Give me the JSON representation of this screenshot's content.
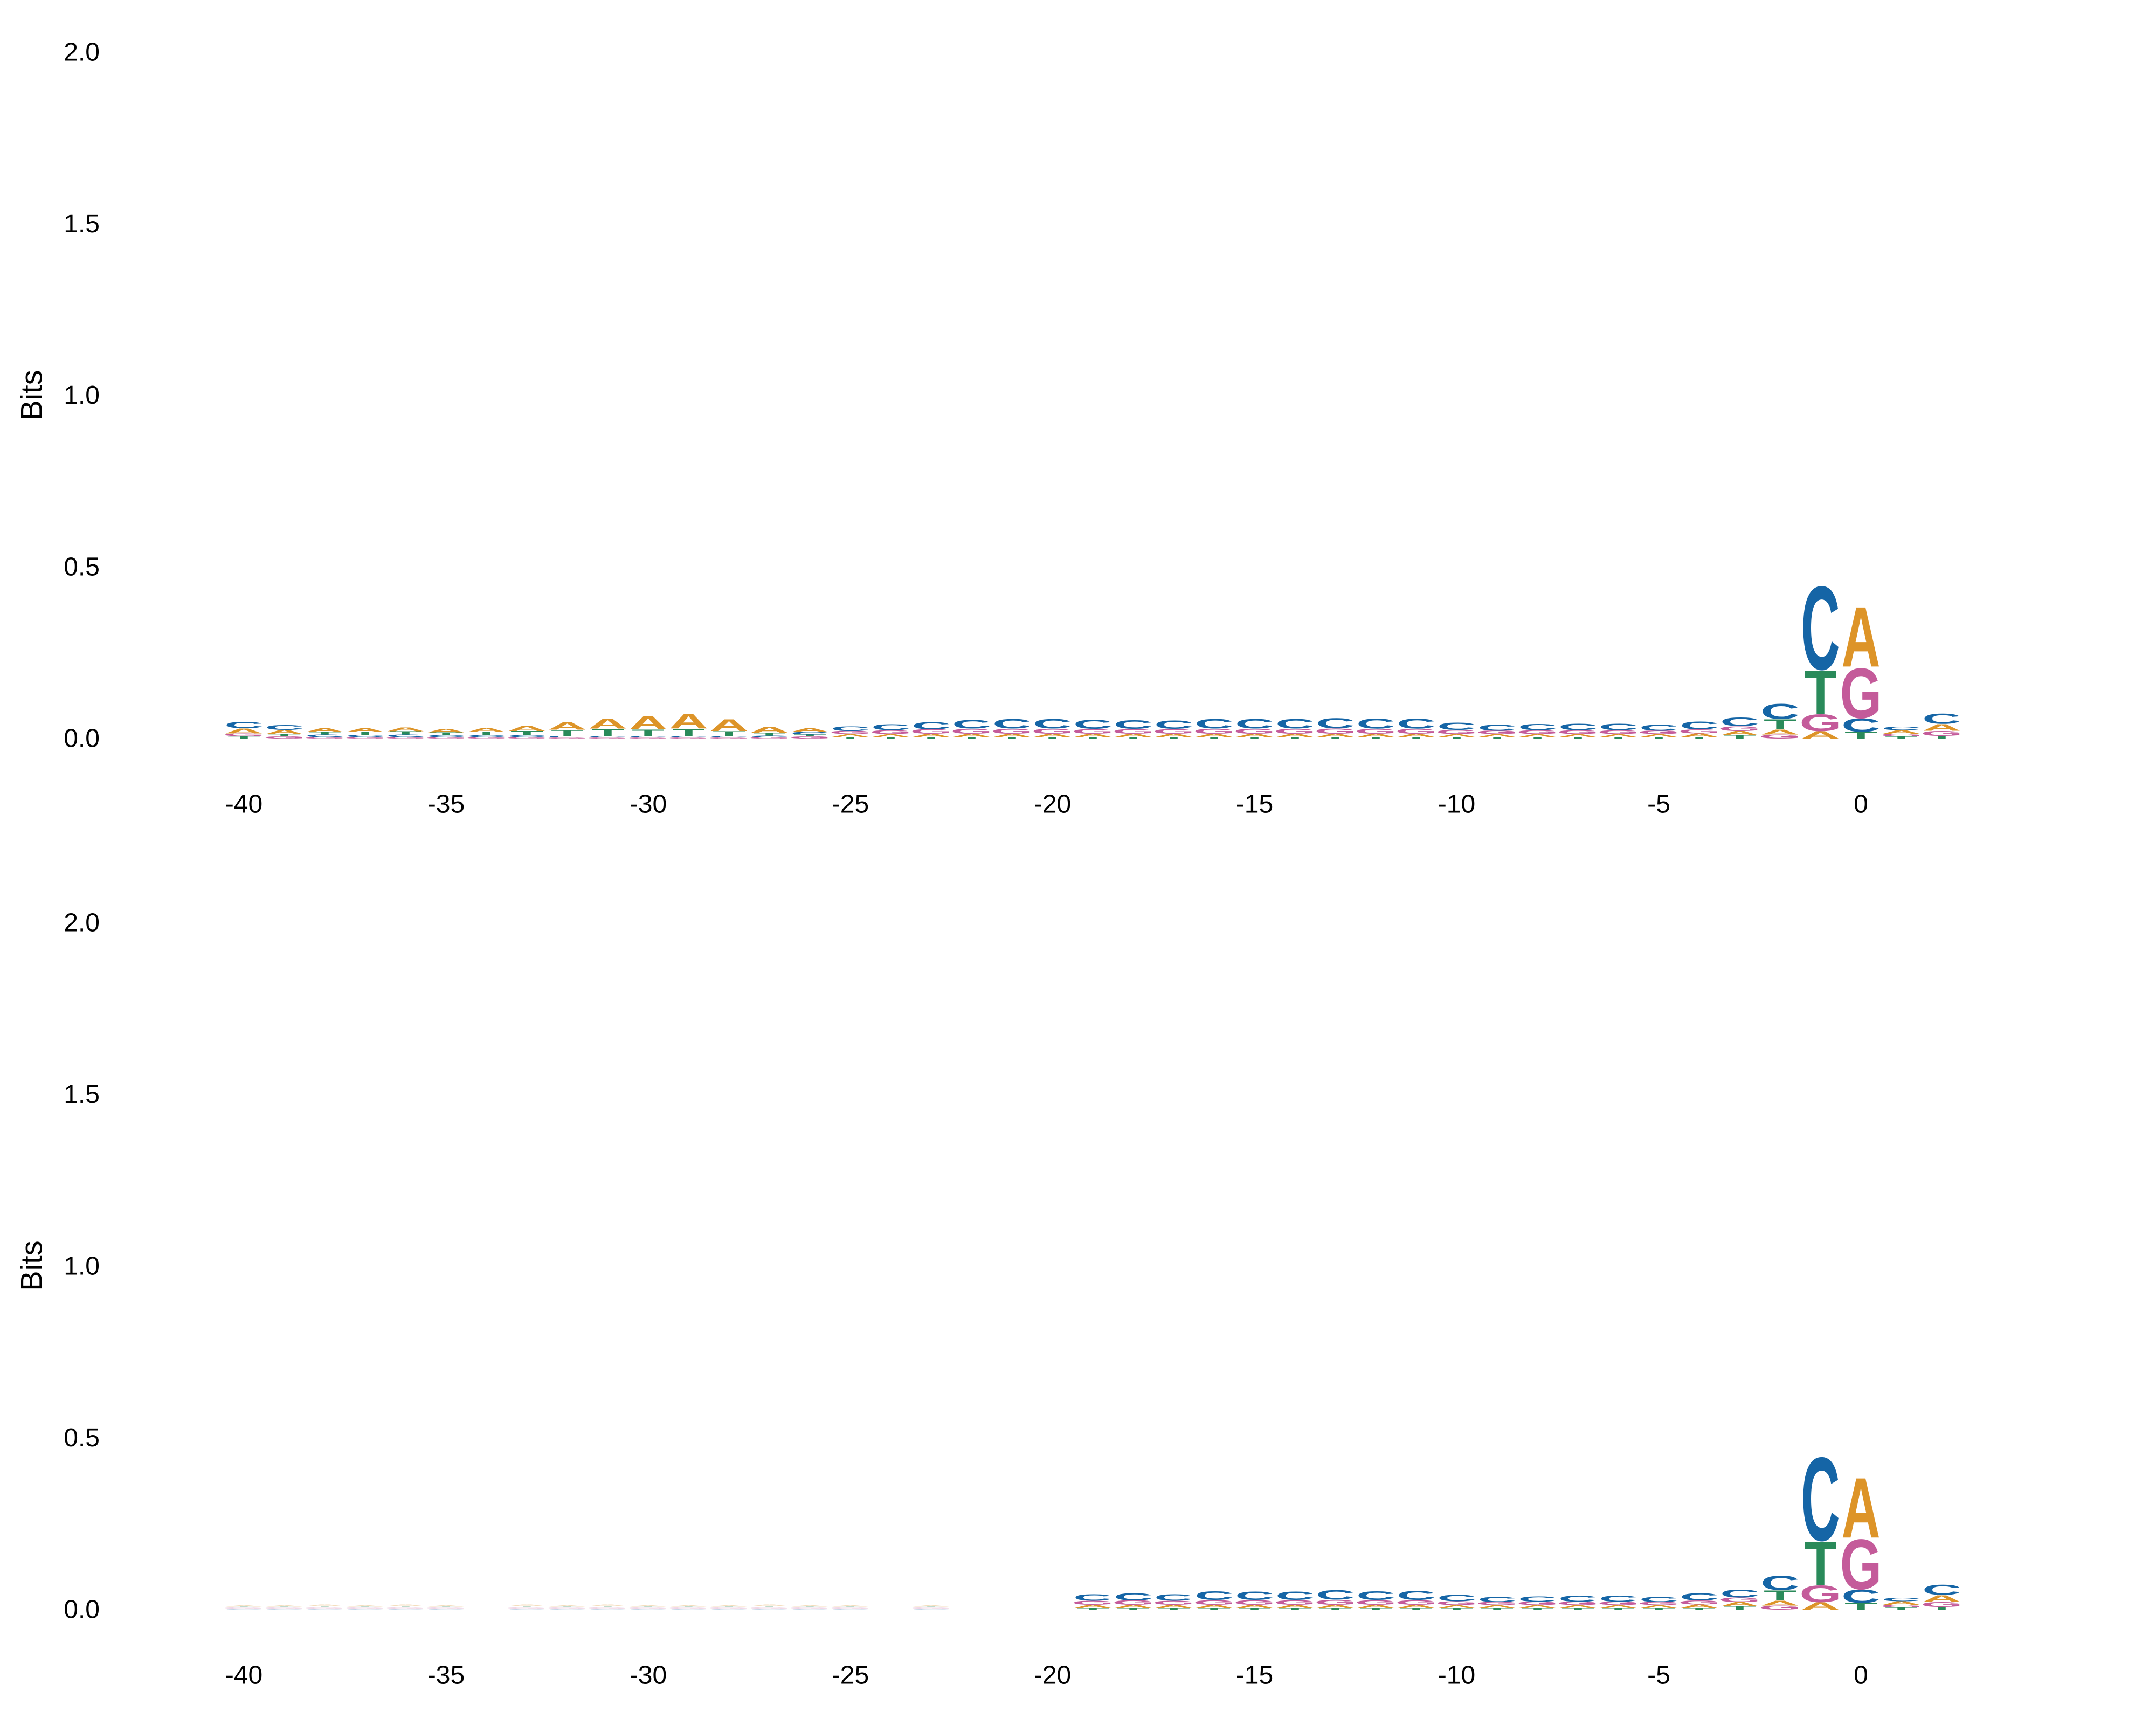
{
  "chart_data": [
    {
      "type": "sequence-logo",
      "ylabel": "Bits",
      "ylim": [
        0,
        2.0
      ],
      "y_ticks": [
        "2.0",
        "1.5",
        "1.0",
        "0.5",
        "0.0"
      ],
      "x_ticks": [
        "-40",
        "-35",
        "-30",
        "-25",
        "-20",
        "-15",
        "-10",
        "-5",
        "0"
      ],
      "x_range": [
        -40,
        2
      ],
      "colors": {
        "A": "#dd9428",
        "C": "#1565a6",
        "G": "#c45b9a",
        "T": "#2a8a5a"
      },
      "positions": [
        {
          "pos": -40,
          "A": 0.015,
          "C": 0.02,
          "G": 0.008,
          "T": 0.007
        },
        {
          "pos": -39,
          "A": 0.012,
          "C": 0.015,
          "G": 0.006,
          "T": 0.007
        },
        {
          "pos": -38,
          "A": 0.01,
          "C": 0.008,
          "G": 0.004,
          "T": 0.008
        },
        {
          "pos": -37,
          "A": 0.01,
          "C": 0.007,
          "G": 0.004,
          "T": 0.009
        },
        {
          "pos": -36,
          "A": 0.011,
          "C": 0.008,
          "G": 0.004,
          "T": 0.009
        },
        {
          "pos": -35,
          "A": 0.01,
          "C": 0.006,
          "G": 0.004,
          "T": 0.008
        },
        {
          "pos": -34,
          "A": 0.011,
          "C": 0.006,
          "G": 0.004,
          "T": 0.01
        },
        {
          "pos": -33,
          "A": 0.016,
          "C": 0.006,
          "G": 0.004,
          "T": 0.012
        },
        {
          "pos": -32,
          "A": 0.022,
          "C": 0.005,
          "G": 0.003,
          "T": 0.018
        },
        {
          "pos": -31,
          "A": 0.03,
          "C": 0.004,
          "G": 0.003,
          "T": 0.022
        },
        {
          "pos": -30,
          "A": 0.04,
          "C": 0.004,
          "G": 0.003,
          "T": 0.02
        },
        {
          "pos": -29,
          "A": 0.044,
          "C": 0.004,
          "G": 0.003,
          "T": 0.022
        },
        {
          "pos": -28,
          "A": 0.036,
          "C": 0.004,
          "G": 0.003,
          "T": 0.015
        },
        {
          "pos": -27,
          "A": 0.018,
          "C": 0.005,
          "G": 0.004,
          "T": 0.008
        },
        {
          "pos": -26,
          "A": 0.01,
          "C": 0.008,
          "G": 0.006,
          "T": 0.006
        },
        {
          "pos": -25,
          "A": 0.008,
          "C": 0.014,
          "G": 0.009,
          "T": 0.005
        },
        {
          "pos": -24,
          "A": 0.008,
          "C": 0.018,
          "G": 0.011,
          "T": 0.005
        },
        {
          "pos": -23,
          "A": 0.009,
          "C": 0.022,
          "G": 0.013,
          "T": 0.005
        },
        {
          "pos": -22,
          "A": 0.009,
          "C": 0.026,
          "G": 0.015,
          "T": 0.005
        },
        {
          "pos": -21,
          "A": 0.009,
          "C": 0.028,
          "G": 0.015,
          "T": 0.005
        },
        {
          "pos": -20,
          "A": 0.009,
          "C": 0.028,
          "G": 0.015,
          "T": 0.005
        },
        {
          "pos": -19,
          "A": 0.009,
          "C": 0.027,
          "G": 0.014,
          "T": 0.005
        },
        {
          "pos": -18,
          "A": 0.009,
          "C": 0.026,
          "G": 0.014,
          "T": 0.005
        },
        {
          "pos": -17,
          "A": 0.009,
          "C": 0.025,
          "G": 0.014,
          "T": 0.005
        },
        {
          "pos": -16,
          "A": 0.009,
          "C": 0.028,
          "G": 0.015,
          "T": 0.005
        },
        {
          "pos": -15,
          "A": 0.009,
          "C": 0.028,
          "G": 0.015,
          "T": 0.005
        },
        {
          "pos": -14,
          "A": 0.009,
          "C": 0.028,
          "G": 0.015,
          "T": 0.005
        },
        {
          "pos": -13,
          "A": 0.009,
          "C": 0.03,
          "G": 0.016,
          "T": 0.005
        },
        {
          "pos": -12,
          "A": 0.009,
          "C": 0.029,
          "G": 0.015,
          "T": 0.005
        },
        {
          "pos": -11,
          "A": 0.009,
          "C": 0.029,
          "G": 0.015,
          "T": 0.005
        },
        {
          "pos": -10,
          "A": 0.008,
          "C": 0.022,
          "G": 0.012,
          "T": 0.005
        },
        {
          "pos": -9,
          "A": 0.008,
          "C": 0.018,
          "G": 0.01,
          "T": 0.005
        },
        {
          "pos": -8,
          "A": 0.008,
          "C": 0.019,
          "G": 0.011,
          "T": 0.005
        },
        {
          "pos": -7,
          "A": 0.008,
          "C": 0.02,
          "G": 0.011,
          "T": 0.005
        },
        {
          "pos": -6,
          "A": 0.008,
          "C": 0.02,
          "G": 0.011,
          "T": 0.005
        },
        {
          "pos": -5,
          "A": 0.008,
          "C": 0.018,
          "G": 0.01,
          "T": 0.005
        },
        {
          "pos": -4,
          "A": 0.01,
          "C": 0.024,
          "G": 0.012,
          "T": 0.005
        },
        {
          "pos": -3,
          "A": 0.012,
          "C": 0.026,
          "G": 0.014,
          "T": 0.01
        },
        {
          "pos": -2,
          "A": 0.015,
          "C": 0.045,
          "G": 0.012,
          "T": 0.03
        },
        {
          "pos": -1,
          "A": 0.022,
          "C": 0.25,
          "G": 0.05,
          "T": 0.13
        },
        {
          "pos": 0,
          "A": 0.18,
          "C": 0.04,
          "G": 0.15,
          "T": 0.02
        },
        {
          "pos": 1,
          "A": 0.01,
          "C": 0.01,
          "G": 0.008,
          "T": 0.006
        },
        {
          "pos": 2,
          "A": 0.02,
          "C": 0.03,
          "G": 0.015,
          "T": 0.008
        }
      ]
    },
    {
      "type": "sequence-logo",
      "ylabel": "Bits",
      "ylim": [
        0,
        2.0
      ],
      "y_ticks": [
        "2.0",
        "1.5",
        "1.0",
        "0.5",
        "0.0"
      ],
      "x_ticks": [
        "-40",
        "-35",
        "-30",
        "-25",
        "-20",
        "-15",
        "-10",
        "-5",
        "0"
      ],
      "x_range": [
        -40,
        2
      ],
      "faded_range": [
        -40,
        -23
      ],
      "colors": {
        "A": "#dd9428",
        "C": "#1565a6",
        "G": "#c45b9a",
        "T": "#2a8a5a"
      },
      "positions": [
        {
          "pos": -40,
          "A": 0.004,
          "C": 0.003,
          "G": 0.003,
          "T": 0.003
        },
        {
          "pos": -39,
          "A": 0.004,
          "C": 0.003,
          "G": 0.003,
          "T": 0.003
        },
        {
          "pos": -38,
          "A": 0.005,
          "C": 0.003,
          "G": 0.003,
          "T": 0.004
        },
        {
          "pos": -37,
          "A": 0.004,
          "C": 0.003,
          "G": 0.003,
          "T": 0.003
        },
        {
          "pos": -36,
          "A": 0.005,
          "C": 0.003,
          "G": 0.003,
          "T": 0.004
        },
        {
          "pos": -35,
          "A": 0.004,
          "C": 0.003,
          "G": 0.003,
          "T": 0.003
        },
        {
          "pos": -33,
          "A": 0.005,
          "C": 0.003,
          "G": 0.003,
          "T": 0.004
        },
        {
          "pos": -32,
          "A": 0.004,
          "C": 0.003,
          "G": 0.003,
          "T": 0.003
        },
        {
          "pos": -31,
          "A": 0.005,
          "C": 0.003,
          "G": 0.003,
          "T": 0.004
        },
        {
          "pos": -30,
          "A": 0.004,
          "C": 0.003,
          "G": 0.003,
          "T": 0.003
        },
        {
          "pos": -29,
          "A": 0.004,
          "C": 0.003,
          "G": 0.003,
          "T": 0.003
        },
        {
          "pos": -28,
          "A": 0.004,
          "C": 0.003,
          "G": 0.003,
          "T": 0.003
        },
        {
          "pos": -27,
          "A": 0.005,
          "C": 0.003,
          "G": 0.003,
          "T": 0.004
        },
        {
          "pos": -26,
          "A": 0.004,
          "C": 0.003,
          "G": 0.003,
          "T": 0.003
        },
        {
          "pos": -25,
          "A": 0.004,
          "C": 0.003,
          "G": 0.003,
          "T": 0.003
        },
        {
          "pos": -23,
          "A": 0.004,
          "C": 0.003,
          "G": 0.003,
          "T": 0.003
        },
        {
          "pos": -19,
          "A": 0.009,
          "C": 0.02,
          "G": 0.012,
          "T": 0.005
        },
        {
          "pos": -18,
          "A": 0.009,
          "C": 0.022,
          "G": 0.013,
          "T": 0.005
        },
        {
          "pos": -17,
          "A": 0.009,
          "C": 0.02,
          "G": 0.012,
          "T": 0.005
        },
        {
          "pos": -16,
          "A": 0.009,
          "C": 0.026,
          "G": 0.014,
          "T": 0.005
        },
        {
          "pos": -15,
          "A": 0.009,
          "C": 0.025,
          "G": 0.014,
          "T": 0.005
        },
        {
          "pos": -14,
          "A": 0.009,
          "C": 0.025,
          "G": 0.014,
          "T": 0.005
        },
        {
          "pos": -13,
          "A": 0.009,
          "C": 0.028,
          "G": 0.015,
          "T": 0.005
        },
        {
          "pos": -12,
          "A": 0.009,
          "C": 0.026,
          "G": 0.014,
          "T": 0.005
        },
        {
          "pos": -11,
          "A": 0.009,
          "C": 0.027,
          "G": 0.014,
          "T": 0.005
        },
        {
          "pos": -10,
          "A": 0.008,
          "C": 0.02,
          "G": 0.011,
          "T": 0.005
        },
        {
          "pos": -9,
          "A": 0.008,
          "C": 0.016,
          "G": 0.009,
          "T": 0.005
        },
        {
          "pos": -8,
          "A": 0.008,
          "C": 0.017,
          "G": 0.01,
          "T": 0.005
        },
        {
          "pos": -7,
          "A": 0.008,
          "C": 0.019,
          "G": 0.01,
          "T": 0.005
        },
        {
          "pos": -6,
          "A": 0.008,
          "C": 0.019,
          "G": 0.01,
          "T": 0.005
        },
        {
          "pos": -5,
          "A": 0.008,
          "C": 0.016,
          "G": 0.009,
          "T": 0.005
        },
        {
          "pos": -4,
          "A": 0.01,
          "C": 0.022,
          "G": 0.012,
          "T": 0.005
        },
        {
          "pos": -3,
          "A": 0.012,
          "C": 0.024,
          "G": 0.013,
          "T": 0.01
        },
        {
          "pos": -2,
          "A": 0.015,
          "C": 0.043,
          "G": 0.012,
          "T": 0.03
        },
        {
          "pos": -1,
          "A": 0.022,
          "C": 0.25,
          "G": 0.05,
          "T": 0.13
        },
        {
          "pos": 0,
          "A": 0.18,
          "C": 0.04,
          "G": 0.15,
          "T": 0.02
        },
        {
          "pos": 1,
          "A": 0.01,
          "C": 0.01,
          "G": 0.008,
          "T": 0.006
        },
        {
          "pos": 2,
          "A": 0.02,
          "C": 0.03,
          "G": 0.015,
          "T": 0.008
        }
      ]
    }
  ]
}
